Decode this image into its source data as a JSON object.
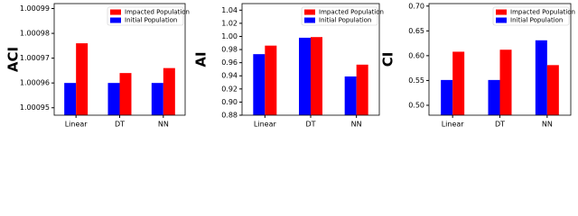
{
  "chart_data": [
    {
      "type": "bar",
      "y_label": "ACI",
      "categories": [
        "Linear",
        "DT",
        "NN"
      ],
      "series": [
        {
          "name": "Initial Population",
          "color": "#0000ff",
          "values": [
            1.00096,
            1.00096,
            1.00096
          ]
        },
        {
          "name": "Impacted Population",
          "color": "#ff0000",
          "values": [
            1.000976,
            1.000964,
            1.000966
          ]
        }
      ],
      "ylim": [
        1.000947,
        1.000992
      ],
      "yticks": [
        1.00095,
        1.00096,
        1.00097,
        1.00098,
        1.00099
      ],
      "legend": "upper right"
    },
    {
      "type": "bar",
      "y_label": "AI",
      "categories": [
        "Linear",
        "DT",
        "NN"
      ],
      "series": [
        {
          "name": "Initial Population",
          "color": "#0000ff",
          "values": [
            0.973,
            0.998,
            0.939
          ]
        },
        {
          "name": "Impacted Population",
          "color": "#ff0000",
          "values": [
            0.986,
            0.999,
            0.957
          ]
        }
      ],
      "ylim": [
        0.88,
        1.05
      ],
      "yticks": [
        {
          "value": 0.88,
          "label": "0.88"
        },
        {
          "value": 0.9,
          "label": "0.90"
        },
        {
          "value": 0.92,
          "label": "0.92"
        },
        {
          "value": 0.94,
          "label": "0.94"
        },
        {
          "value": 0.96,
          "label": "0.96"
        },
        {
          "value": 0.98,
          "label": "0.98"
        },
        {
          "value": 1.0,
          "label": "1.00"
        },
        {
          "value": 1.02,
          "label": "1.02"
        },
        {
          "value": 1.04,
          "label": "1.04"
        }
      ],
      "legend": "upper right"
    },
    {
      "type": "bar",
      "y_label": "CI",
      "categories": [
        "Linear",
        "DT",
        "NN"
      ],
      "series": [
        {
          "name": "Initial Population",
          "color": "#0000ff",
          "values": [
            0.551,
            0.551,
            0.631
          ]
        },
        {
          "name": "Impacted Population",
          "color": "#ff0000",
          "values": [
            0.608,
            0.612,
            0.581
          ]
        }
      ],
      "ylim": [
        0.48,
        0.705
      ],
      "yticks": [
        {
          "value": 0.5,
          "label": "0.50"
        },
        0.55,
        {
          "value": 0.6,
          "label": "0.60"
        },
        0.65,
        {
          "value": 0.7,
          "label": "0.70"
        }
      ],
      "legend": "upper right"
    }
  ]
}
